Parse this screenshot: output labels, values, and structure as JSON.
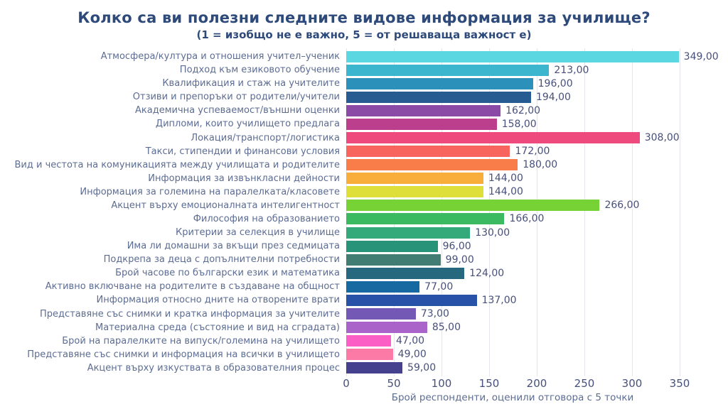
{
  "chart_data": {
    "type": "bar",
    "orientation": "horizontal",
    "title": "Колко са ви полезни следните видове информация за училище?",
    "subtitle": "(1 = изобщо не е важно, 5 = от решаваща важност е)",
    "xlabel": "Брой респонденти, оценили отговора с 5 точки",
    "xlim": [
      0,
      350
    ],
    "xticks": [
      "0",
      "50",
      "100",
      "150",
      "200",
      "250",
      "300",
      "350"
    ],
    "grid": "vertical",
    "legend": "none",
    "categories": [
      "Атмосфера/култура и отношения учител–ученик",
      "Подход към езиковото обучение",
      "Квалификация и стаж на учителите",
      "Отзиви и препоръки от родители/учители",
      "Академична успеваемост/външни оценки",
      "Дипломи, които училището предлага",
      "Локация/транспорт/логистика",
      "Такси, стипендии и финансови условия",
      "Вид и честота на комуникацията между училищата и родителите",
      "Информация за извънкласни дейности",
      "Информация за големина на паралелката/класовете",
      "Акцент върху емоционалната интелигентност",
      "Философия на образованието",
      "Критерии за селекция в училище",
      "Има ли домашни за вкъщи през седмицата",
      "Подкрепа за деца с допълнителни потребности",
      "Брой часове по български език и математика",
      "Активно включване на родителите в създаване на общност",
      "Информация относно дните на отворените врати",
      "Представяне със снимки и кратка информация за учителите",
      "Материална среда (състояние и вид на сградата)",
      "Брой на паралелките на випуск/големина на училището",
      "Представяне със снимки и информация на всички в училището",
      "Акцент върху изкуствата в образователния процес"
    ],
    "values": [
      349,
      213,
      196,
      194,
      162,
      158,
      308,
      172,
      180,
      144,
      144,
      266,
      166,
      130,
      96,
      99,
      124,
      77,
      137,
      73,
      85,
      47,
      49,
      59
    ],
    "value_labels": [
      "349,00",
      "213,00",
      "196,00",
      "194,00",
      "162,00",
      "158,00",
      "308,00",
      "172,00",
      "180,00",
      "144,00",
      "144,00",
      "266,00",
      "166,00",
      "130,00",
      "96,00",
      "99,00",
      "124,00",
      "77,00",
      "137,00",
      "73,00",
      "85,00",
      "47,00",
      "49,00",
      "59,00"
    ],
    "bar_colors": [
      "#5BD7E2",
      "#3BB6CE",
      "#2B90BA",
      "#275C92",
      "#8B4AA6",
      "#BC3F8E",
      "#EE4A7D",
      "#F8655F",
      "#F87D49",
      "#F9AD3B",
      "#DEDF39",
      "#77D335",
      "#3CBA61",
      "#34AA7B",
      "#27947A",
      "#417D73",
      "#26687E",
      "#1769A2",
      "#2851A8",
      "#7358B5",
      "#A963C9",
      "#FB5EC4",
      "#FB7BA6",
      "#45418F"
    ],
    "colors": {
      "title": "#2D4A7A",
      "label": "#5C6C93",
      "value": "#47507A",
      "grid": "#E6E6EE",
      "background": "#FFFFFF"
    }
  }
}
